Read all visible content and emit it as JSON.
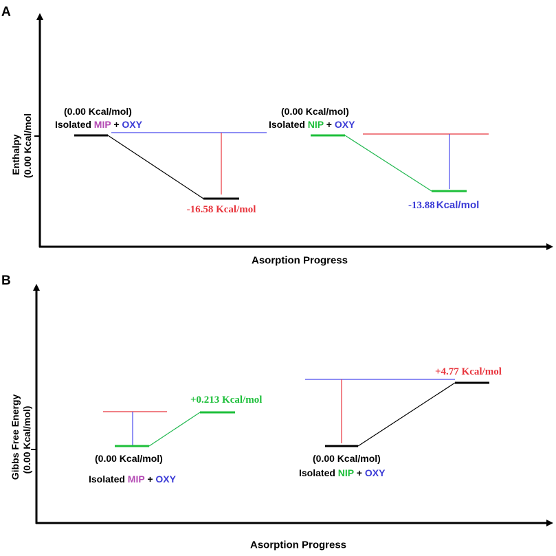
{
  "panels": {
    "a": {
      "letter": "A",
      "ylabel_line1": "Enthalpy",
      "ylabel_line2": "(0.00 Kcal/mol",
      "xlabel": "Asorption Progress",
      "left": {
        "start_value": "(0.00 Kcal/mol)",
        "isolated": "Isolated",
        "polymer": "MIP",
        "plus": "+",
        "analyte": "OXY",
        "end_value": "-16.58 Kcal/mol"
      },
      "right": {
        "start_value": "(0.00 Kcal/mol)",
        "isolated": "Isolated",
        "polymer": "NIP",
        "plus": "+",
        "analyte": "OXY",
        "end_number": "-13.88",
        "end_unit": "Kcal/mol"
      }
    },
    "b": {
      "letter": "B",
      "ylabel_line1": "Gibbs Free Energy",
      "ylabel_line2": "(0.00 Kcal/mol)",
      "xlabel": "Asorption Progress",
      "left": {
        "start_value": "(0.00 Kcal/mol)",
        "isolated": "Isolated",
        "polymer": "MIP",
        "plus": "+",
        "analyte": "OXY",
        "end_value": "+0.213 Kcal/mol"
      },
      "right": {
        "start_value": "(0.00 Kcal/mol)",
        "isolated": "Isolated",
        "polymer": "NIP",
        "plus": "+",
        "analyte": "OXY",
        "end_value": "+4.77 Kcal/mol"
      }
    }
  },
  "colors": {
    "black": "#000000",
    "mip": "#b44bb4",
    "nip": "#1dbf3a",
    "oxy": "#3b3bd6",
    "red": "#e8343c",
    "blue_line": "#4a4aee",
    "green_line": "#22b850"
  }
}
